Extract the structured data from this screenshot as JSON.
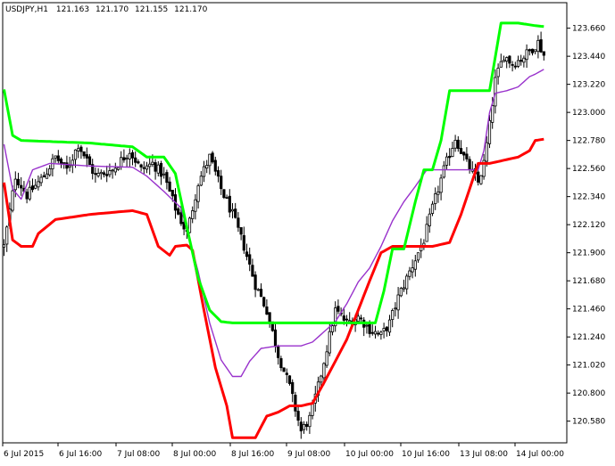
{
  "chart_data": {
    "type": "candlestick",
    "header": {
      "symbol": "USDJPY,H1",
      "open": "121.163",
      "high": "121.170",
      "low": "121.155",
      "close": "121.170"
    },
    "y_ticks": [
      "123.660",
      "123.440",
      "123.220",
      "123.000",
      "122.780",
      "122.560",
      "122.340",
      "122.120",
      "121.900",
      "121.680",
      "121.460",
      "121.240",
      "121.020",
      "120.800",
      "120.580"
    ],
    "x_ticks": [
      "6 Jul 2015",
      "6 Jul 16:00",
      "7 Jul 08:00",
      "8 Jul 00:00",
      "8 Jul 16:00",
      "9 Jul 08:00",
      "10 Jul 00:00",
      "10 Jul 16:00",
      "13 Jul 08:00",
      "14 Jul 00:00"
    ],
    "ylim": [
      120.41,
      123.86
    ],
    "bar_count": 190,
    "colors": {
      "background": "#ffffff",
      "candle": "#000000",
      "upper_band": "#00ff00",
      "middle_line": "#9932cc",
      "lower_band": "#ff0000"
    },
    "anchors": {
      "close": [
        [
          0,
          121.95
        ],
        [
          4,
          122.5
        ],
        [
          8,
          122.35
        ],
        [
          14,
          122.5
        ],
        [
          18,
          122.65
        ],
        [
          22,
          122.55
        ],
        [
          26,
          122.75
        ],
        [
          32,
          122.5
        ],
        [
          38,
          122.55
        ],
        [
          44,
          122.7
        ],
        [
          48,
          122.55
        ],
        [
          52,
          122.6
        ],
        [
          56,
          122.5
        ],
        [
          60,
          122.25
        ],
        [
          64,
          122.05
        ],
        [
          68,
          122.45
        ],
        [
          72,
          122.65
        ],
        [
          76,
          122.4
        ],
        [
          80,
          122.2
        ],
        [
          84,
          121.95
        ],
        [
          88,
          121.65
        ],
        [
          92,
          121.45
        ],
        [
          96,
          121.1
        ],
        [
          100,
          120.85
        ],
        [
          104,
          120.5
        ],
        [
          107,
          120.6
        ],
        [
          110,
          120.85
        ],
        [
          113,
          121.15
        ],
        [
          116,
          121.45
        ],
        [
          120,
          121.35
        ],
        [
          124,
          121.4
        ],
        [
          128,
          121.3
        ],
        [
          132,
          121.25
        ],
        [
          135,
          121.35
        ],
        [
          138,
          121.55
        ],
        [
          141,
          121.7
        ],
        [
          144,
          121.85
        ],
        [
          147,
          122.0
        ],
        [
          150,
          122.25
        ],
        [
          154,
          122.55
        ],
        [
          158,
          122.8
        ],
        [
          162,
          122.6
        ],
        [
          166,
          122.45
        ],
        [
          168,
          122.6
        ],
        [
          170,
          122.9
        ],
        [
          172,
          123.25
        ],
        [
          175,
          123.45
        ],
        [
          178,
          123.38
        ],
        [
          181,
          123.42
        ],
        [
          184,
          123.48
        ],
        [
          187,
          123.55
        ],
        [
          190,
          123.4
        ],
        [
          193,
          123.35
        ],
        [
          197,
          123.38
        ]
      ],
      "upper": [
        [
          0,
          123.18
        ],
        [
          3,
          122.82
        ],
        [
          6,
          122.78
        ],
        [
          30,
          122.76
        ],
        [
          45,
          122.73
        ],
        [
          50,
          122.65
        ],
        [
          56,
          122.65
        ],
        [
          60,
          122.52
        ],
        [
          64,
          122.1
        ],
        [
          68,
          121.7
        ],
        [
          72,
          121.45
        ],
        [
          76,
          121.36
        ],
        [
          80,
          121.35
        ],
        [
          88,
          121.35
        ],
        [
          92,
          121.35
        ],
        [
          96,
          121.35
        ],
        [
          100,
          121.35
        ],
        [
          104,
          121.35
        ],
        [
          120,
          121.35
        ],
        [
          126,
          121.35
        ],
        [
          130,
          121.35
        ],
        [
          133,
          121.6
        ],
        [
          136,
          121.93
        ],
        [
          140,
          121.93
        ],
        [
          144,
          122.3
        ],
        [
          147,
          122.55
        ],
        [
          150,
          122.55
        ],
        [
          153,
          122.78
        ],
        [
          156,
          123.17
        ],
        [
          160,
          123.17
        ],
        [
          166,
          123.17
        ],
        [
          170,
          123.17
        ],
        [
          174,
          123.7
        ],
        [
          180,
          123.7
        ],
        [
          186,
          123.68
        ],
        [
          190,
          123.67
        ],
        [
          197,
          123.67
        ]
      ],
      "middle": [
        [
          0,
          122.75
        ],
        [
          3,
          122.4
        ],
        [
          6,
          122.32
        ],
        [
          10,
          122.55
        ],
        [
          16,
          122.6
        ],
        [
          30,
          122.58
        ],
        [
          45,
          122.57
        ],
        [
          50,
          122.5
        ],
        [
          56,
          122.38
        ],
        [
          62,
          122.25
        ],
        [
          68,
          121.75
        ],
        [
          72,
          121.35
        ],
        [
          76,
          121.06
        ],
        [
          80,
          120.93
        ],
        [
          83,
          120.93
        ],
        [
          86,
          121.05
        ],
        [
          90,
          121.15
        ],
        [
          96,
          121.17
        ],
        [
          100,
          121.17
        ],
        [
          104,
          121.17
        ],
        [
          108,
          121.2
        ],
        [
          112,
          121.28
        ],
        [
          116,
          121.36
        ],
        [
          120,
          121.5
        ],
        [
          124,
          121.67
        ],
        [
          128,
          121.78
        ],
        [
          132,
          121.95
        ],
        [
          136,
          122.15
        ],
        [
          140,
          122.3
        ],
        [
          144,
          122.42
        ],
        [
          148,
          122.55
        ],
        [
          152,
          122.55
        ],
        [
          160,
          122.55
        ],
        [
          166,
          122.55
        ],
        [
          168,
          122.7
        ],
        [
          170,
          123.0
        ],
        [
          172,
          123.15
        ],
        [
          176,
          123.17
        ],
        [
          180,
          123.2
        ],
        [
          184,
          123.28
        ],
        [
          186,
          123.3
        ],
        [
          190,
          123.35
        ],
        [
          197,
          123.35
        ]
      ],
      "lower": [
        [
          0,
          122.45
        ],
        [
          3,
          122.0
        ],
        [
          6,
          121.95
        ],
        [
          10,
          121.95
        ],
        [
          12,
          122.05
        ],
        [
          18,
          122.16
        ],
        [
          30,
          122.2
        ],
        [
          45,
          122.23
        ],
        [
          50,
          122.2
        ],
        [
          54,
          121.95
        ],
        [
          58,
          121.88
        ],
        [
          60,
          121.95
        ],
        [
          64,
          121.96
        ],
        [
          66,
          121.92
        ],
        [
          70,
          121.45
        ],
        [
          74,
          121.0
        ],
        [
          78,
          120.7
        ],
        [
          80,
          120.45
        ],
        [
          84,
          120.45
        ],
        [
          88,
          120.45
        ],
        [
          92,
          120.62
        ],
        [
          96,
          120.65
        ],
        [
          100,
          120.7
        ],
        [
          104,
          120.7
        ],
        [
          108,
          120.72
        ],
        [
          112,
          120.88
        ],
        [
          116,
          121.05
        ],
        [
          120,
          121.22
        ],
        [
          124,
          121.45
        ],
        [
          128,
          121.68
        ],
        [
          132,
          121.9
        ],
        [
          136,
          121.95
        ],
        [
          140,
          121.95
        ],
        [
          150,
          121.95
        ],
        [
          156,
          121.98
        ],
        [
          160,
          122.2
        ],
        [
          166,
          122.6
        ],
        [
          170,
          122.6
        ],
        [
          176,
          122.63
        ],
        [
          180,
          122.65
        ],
        [
          184,
          122.7
        ],
        [
          186,
          122.78
        ],
        [
          192,
          122.8
        ],
        [
          197,
          122.8
        ]
      ]
    }
  }
}
